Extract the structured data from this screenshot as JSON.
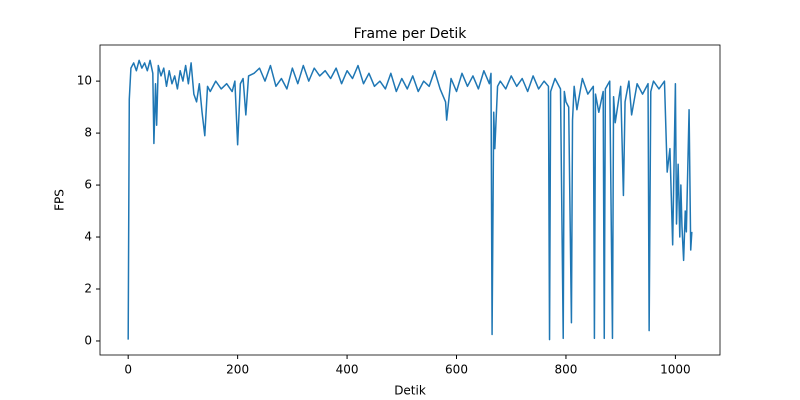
{
  "chart_data": {
    "type": "line",
    "title": "Frame per Detik",
    "x_label": "Detik",
    "y_label": "FPS",
    "x": [
      0,
      2,
      5,
      10,
      15,
      20,
      25,
      30,
      35,
      40,
      45,
      47,
      50,
      52,
      55,
      60,
      65,
      70,
      75,
      80,
      85,
      90,
      95,
      100,
      105,
      110,
      115,
      120,
      125,
      130,
      135,
      140,
      145,
      150,
      160,
      170,
      180,
      190,
      195,
      200,
      205,
      210,
      215,
      220,
      230,
      240,
      250,
      260,
      270,
      280,
      290,
      300,
      310,
      320,
      330,
      340,
      350,
      360,
      370,
      380,
      390,
      400,
      410,
      420,
      430,
      440,
      450,
      460,
      470,
      480,
      490,
      500,
      510,
      520,
      530,
      540,
      550,
      560,
      570,
      580,
      582,
      590,
      600,
      610,
      620,
      630,
      640,
      650,
      660,
      663,
      665,
      668,
      670,
      675,
      680,
      690,
      700,
      710,
      720,
      730,
      740,
      750,
      760,
      768,
      770,
      772,
      780,
      790,
      795,
      797,
      800,
      805,
      810,
      812,
      815,
      820,
      830,
      840,
      850,
      852,
      854,
      860,
      868,
      870,
      872,
      880,
      885,
      887,
      890,
      900,
      905,
      908,
      915,
      920,
      930,
      940,
      950,
      952,
      955,
      960,
      970,
      980,
      985,
      990,
      995,
      1000,
      1002,
      1005,
      1008,
      1010,
      1012,
      1015,
      1018,
      1020,
      1025,
      1028,
      1030
    ],
    "series": [
      {
        "color": "#1f77b4",
        "values": [
          0.05,
          9.3,
          10.5,
          10.7,
          10.4,
          10.8,
          10.5,
          10.7,
          10.4,
          10.8,
          10.3,
          7.6,
          9.9,
          8.3,
          10.6,
          10.2,
          10.5,
          9.8,
          10.4,
          9.9,
          10.2,
          9.7,
          10.4,
          10.0,
          10.6,
          9.9,
          10.7,
          9.5,
          9.2,
          9.9,
          8.8,
          7.9,
          9.8,
          9.6,
          10.0,
          9.7,
          9.9,
          9.6,
          10.0,
          7.55,
          9.9,
          10.1,
          8.7,
          10.2,
          10.3,
          10.5,
          10.0,
          10.6,
          9.8,
          10.1,
          9.7,
          10.5,
          9.9,
          10.6,
          10.0,
          10.5,
          10.2,
          10.4,
          10.1,
          10.5,
          9.9,
          10.4,
          10.1,
          10.6,
          9.9,
          10.3,
          9.8,
          10.0,
          9.7,
          10.3,
          9.6,
          10.1,
          9.7,
          10.2,
          9.6,
          10.0,
          9.8,
          10.4,
          9.7,
          9.2,
          8.5,
          10.1,
          9.6,
          10.3,
          9.8,
          10.2,
          9.7,
          10.4,
          9.9,
          10.3,
          0.25,
          8.8,
          7.4,
          9.8,
          10.0,
          9.7,
          10.2,
          9.8,
          10.1,
          9.6,
          10.2,
          9.7,
          10.0,
          9.8,
          0.05,
          9.6,
          10.1,
          9.7,
          0.1,
          9.6,
          9.2,
          9.0,
          0.7,
          8.5,
          9.8,
          8.9,
          10.1,
          9.5,
          9.8,
          0.1,
          9.5,
          8.8,
          9.6,
          0.1,
          9.7,
          10.0,
          0.1,
          9.4,
          8.4,
          9.8,
          5.6,
          9.2,
          10.0,
          8.7,
          9.9,
          9.5,
          9.9,
          0.4,
          9.6,
          10.0,
          9.7,
          10.0,
          6.5,
          7.4,
          3.7,
          9.9,
          4.5,
          6.8,
          4.0,
          6.0,
          4.4,
          3.1,
          5.0,
          4.2,
          8.9,
          3.5,
          4.2
        ]
      }
    ],
    "xlim": [
      -51.5,
      1081.5
    ],
    "ylim": [
      -0.54,
      11.39
    ],
    "xticks": [
      0,
      200,
      400,
      600,
      800,
      1000
    ],
    "yticks": [
      0,
      2,
      4,
      6,
      8,
      10
    ],
    "grid": false
  }
}
